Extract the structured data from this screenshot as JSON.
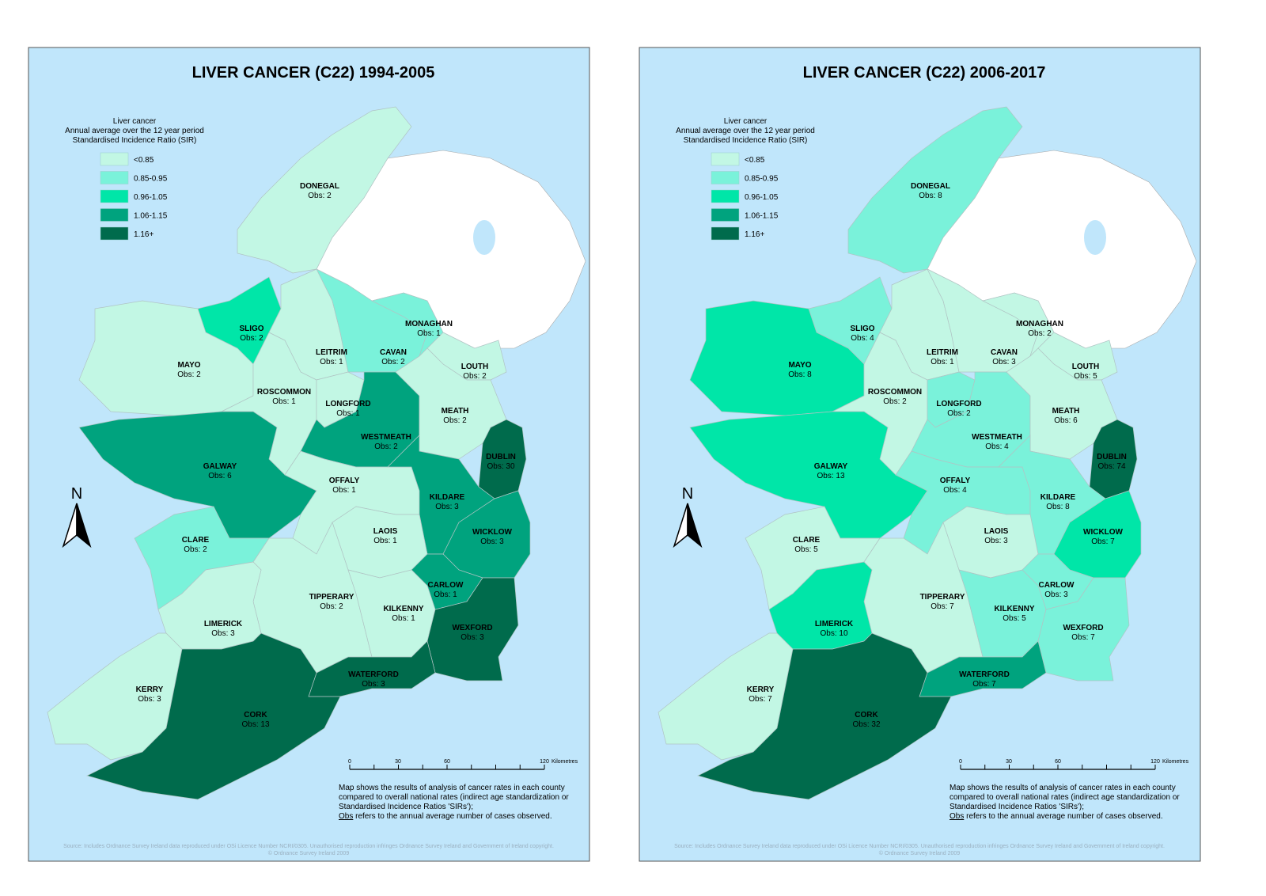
{
  "colors": {
    "sea": "#c0e6fb",
    "northern_ireland": "#ffffff",
    "classes": [
      "#c2f7e4",
      "#7af2da",
      "#00e6a8",
      "#00a37e",
      "#006b4c"
    ]
  },
  "legend": {
    "title_lines": [
      "Liver cancer",
      "Annual average over the 12 year period",
      "Standardised Incidence Ratio (SIR)"
    ],
    "classes": [
      "<0.85",
      "0.85-0.95",
      "0.96-1.05",
      "1.06-1.15",
      "1.16+"
    ]
  },
  "north_label": "N",
  "scale": {
    "ticks": [
      "0",
      "30",
      "60",
      "120"
    ],
    "unit": "Kilometres"
  },
  "note_lines": [
    "Map shows the results of analysis of cancer rates in each county",
    "compared to overall national rates (indirect age standardization or",
    "Standardised Incidence Ratios 'SIRs');"
  ],
  "note_obs_word": "Obs",
  "note_last": " refers to the annual average number of cases observed.",
  "source": "Source: Includes Ordnance Survey Ireland data reproduced under OSi Licence Number NCRI/0305. Unauthorised reproduction infringes Ordnance Survey Ireland and Government of Ireland copyright.",
  "copyright": "© Ordnance Survey Ireland 2009",
  "maps": [
    {
      "title": "LIVER CANCER (C22) 1994-2005",
      "counties": [
        {
          "name": "DONEGAL",
          "obs": "Obs: 2",
          "class": 0
        },
        {
          "name": "SLIGO",
          "obs": "Obs: 2",
          "class": 2
        },
        {
          "name": "MAYO",
          "obs": "Obs: 2",
          "class": 0
        },
        {
          "name": "LEITRIM",
          "obs": "Obs: 1",
          "class": 0
        },
        {
          "name": "CAVAN",
          "obs": "Obs: 2",
          "class": 1
        },
        {
          "name": "MONAGHAN",
          "obs": "Obs: 1",
          "class": 1
        },
        {
          "name": "LOUTH",
          "obs": "Obs: 2",
          "class": 0
        },
        {
          "name": "ROSCOMMON",
          "obs": "Obs: 1",
          "class": 0
        },
        {
          "name": "LONGFORD",
          "obs": "Obs: 1",
          "class": 0
        },
        {
          "name": "WESTMEATH",
          "obs": "Obs: 2",
          "class": 3
        },
        {
          "name": "MEATH",
          "obs": "Obs: 2",
          "class": 0
        },
        {
          "name": "DUBLIN",
          "obs": "Obs: 30",
          "class": 4
        },
        {
          "name": "GALWAY",
          "obs": "Obs: 6",
          "class": 3
        },
        {
          "name": "OFFALY",
          "obs": "Obs: 1",
          "class": 0
        },
        {
          "name": "KILDARE",
          "obs": "Obs: 3",
          "class": 3
        },
        {
          "name": "CLARE",
          "obs": "Obs: 2",
          "class": 1
        },
        {
          "name": "LAOIS",
          "obs": "Obs: 1",
          "class": 0
        },
        {
          "name": "WICKLOW",
          "obs": "Obs: 3",
          "class": 3
        },
        {
          "name": "CARLOW",
          "obs": "Obs: 1",
          "class": 3
        },
        {
          "name": "TIPPERARY",
          "obs": "Obs: 2",
          "class": 0
        },
        {
          "name": "KILKENNY",
          "obs": "Obs: 1",
          "class": 0
        },
        {
          "name": "WEXFORD",
          "obs": "Obs: 3",
          "class": 4
        },
        {
          "name": "LIMERICK",
          "obs": "Obs: 3",
          "class": 0
        },
        {
          "name": "WATERFORD",
          "obs": "Obs: 3",
          "class": 4
        },
        {
          "name": "KERRY",
          "obs": "Obs: 3",
          "class": 0
        },
        {
          "name": "CORK",
          "obs": "Obs: 13",
          "class": 4
        }
      ]
    },
    {
      "title": "LIVER CANCER (C22)  2006-2017",
      "counties": [
        {
          "name": "DONEGAL",
          "obs": "Obs: 8",
          "class": 1
        },
        {
          "name": "SLIGO",
          "obs": "Obs: 4",
          "class": 1
        },
        {
          "name": "MAYO",
          "obs": "Obs: 8",
          "class": 2
        },
        {
          "name": "LEITRIM",
          "obs": "Obs: 1",
          "class": 0
        },
        {
          "name": "CAVAN",
          "obs": "Obs: 3",
          "class": 0
        },
        {
          "name": "MONAGHAN",
          "obs": "Obs: 2",
          "class": 0
        },
        {
          "name": "LOUTH",
          "obs": "Obs: 5",
          "class": 0
        },
        {
          "name": "ROSCOMMON",
          "obs": "Obs: 2",
          "class": 0
        },
        {
          "name": "LONGFORD",
          "obs": "Obs: 2",
          "class": 1
        },
        {
          "name": "WESTMEATH",
          "obs": "Obs: 4",
          "class": 1
        },
        {
          "name": "MEATH",
          "obs": "Obs: 6",
          "class": 0
        },
        {
          "name": "DUBLIN",
          "obs": "Obs: 74",
          "class": 4
        },
        {
          "name": "GALWAY",
          "obs": "Obs: 13",
          "class": 2
        },
        {
          "name": "OFFALY",
          "obs": "Obs: 4",
          "class": 1
        },
        {
          "name": "KILDARE",
          "obs": "Obs: 8",
          "class": 1
        },
        {
          "name": "CLARE",
          "obs": "Obs: 5",
          "class": 0
        },
        {
          "name": "LAOIS",
          "obs": "Obs: 3",
          "class": 0
        },
        {
          "name": "WICKLOW",
          "obs": "Obs: 7",
          "class": 2
        },
        {
          "name": "CARLOW",
          "obs": "Obs: 3",
          "class": 1
        },
        {
          "name": "TIPPERARY",
          "obs": "Obs: 7",
          "class": 0
        },
        {
          "name": "KILKENNY",
          "obs": "Obs: 5",
          "class": 1
        },
        {
          "name": "WEXFORD",
          "obs": "Obs: 7",
          "class": 1
        },
        {
          "name": "LIMERICK",
          "obs": "Obs: 10",
          "class": 2
        },
        {
          "name": "WATERFORD",
          "obs": "Obs: 7",
          "class": 3
        },
        {
          "name": "KERRY",
          "obs": "Obs: 7",
          "class": 0
        },
        {
          "name": "CORK",
          "obs": "Obs: 32",
          "class": 4
        }
      ]
    }
  ]
}
